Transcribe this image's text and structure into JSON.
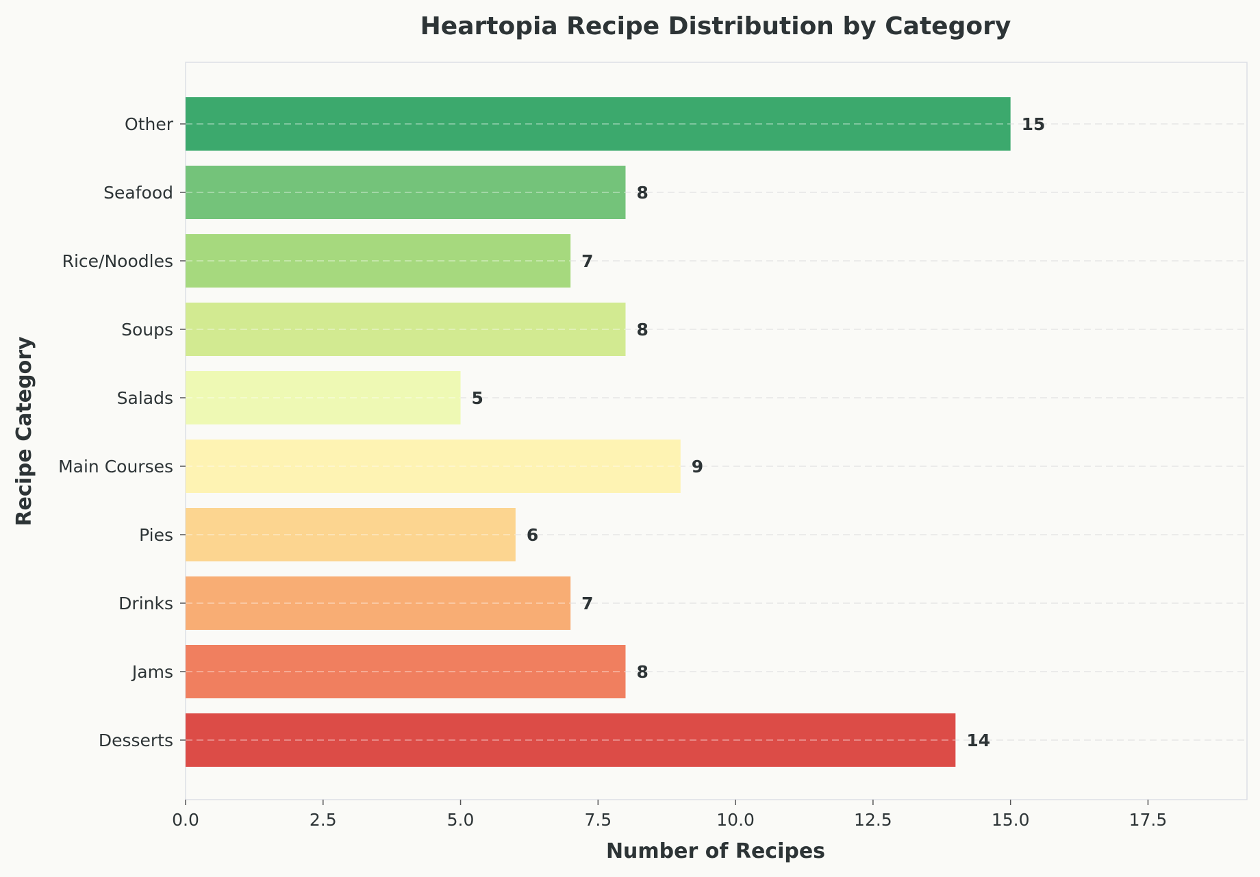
{
  "chart_data": {
    "type": "bar",
    "orientation": "horizontal",
    "title": "Heartopia Recipe Distribution by Category",
    "xlabel": "Number of Recipes",
    "ylabel": "Recipe Category",
    "categories": [
      "Desserts",
      "Jams",
      "Drinks",
      "Pies",
      "Main Courses",
      "Salads",
      "Soups",
      "Rice/Noodles",
      "Seafood",
      "Other"
    ],
    "values": [
      14,
      8,
      7,
      6,
      9,
      5,
      8,
      7,
      8,
      15
    ],
    "colors": [
      "#dc4c47",
      "#f07f5f",
      "#f8ad74",
      "#fcd590",
      "#fef3b3",
      "#eef9b4",
      "#d2ea91",
      "#a6d97e",
      "#74c37a",
      "#3ca96d"
    ],
    "xlim": [
      0,
      19.3
    ],
    "xticks": [
      "0.0",
      "2.5",
      "5.0",
      "7.5",
      "10.0",
      "12.5",
      "15.0",
      "17.5"
    ],
    "xtick_values": [
      0,
      2.5,
      5,
      7.5,
      10,
      12.5,
      15,
      17.5
    ],
    "grid": "dashed horizontal",
    "background": "#fafaf7"
  }
}
